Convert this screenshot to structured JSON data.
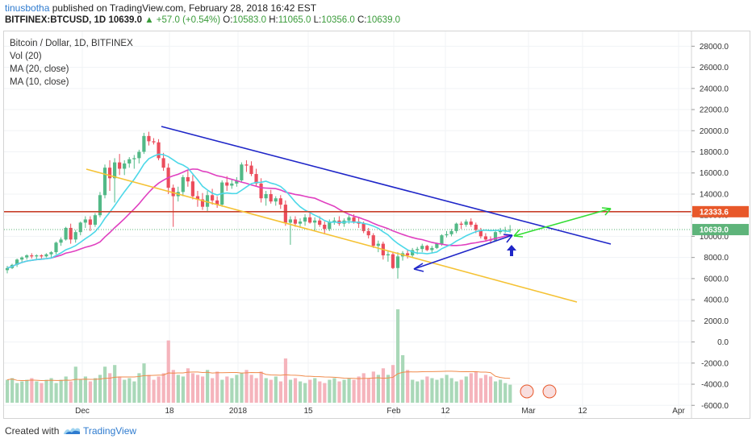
{
  "header": {
    "author": "tinusbotha",
    "published_text": "published on TradingView.com, February 28, 2018 16:42 EST",
    "symbol": "BITFINEX:BTCUSD, 1D",
    "price": "10639.0",
    "change": "▲ +57.0 (+0.54%)",
    "open_label": "O:",
    "open": "10583.0",
    "high_label": "H:",
    "high": "11065.0",
    "low_label": "L:",
    "low": "10356.0",
    "close_label": "C:",
    "close": "10639.0"
  },
  "legend": {
    "title": "Bitcoin / Dollar, 1D, BITFINEX",
    "vol": "Vol (20)",
    "ma20": "MA (20, close)",
    "ma10": "MA (10, close)"
  },
  "footer": {
    "created_with": "Created with",
    "brand": "TradingView"
  },
  "chart_data": {
    "type": "candlestick",
    "title": "Bitcoin / Dollar, 1D, BITFINEX",
    "yticks": [
      -6000,
      -4000,
      -2000,
      0,
      2000,
      4000,
      6000,
      8000,
      10000,
      12000,
      14000,
      16000,
      18000,
      20000,
      22000,
      24000,
      26000,
      28000
    ],
    "ylim": [
      -7200,
      29400
    ],
    "xticks": [
      "Dec",
      "18",
      "2018",
      "15",
      "Feb",
      "12",
      "Mar",
      "12",
      "Apr"
    ],
    "price_tags": [
      {
        "label": "12333.6",
        "value": 12333.6,
        "color": "#e8582a"
      },
      {
        "label": "10639.0",
        "value": 10639.0,
        "color": "#5eb47a"
      }
    ],
    "resistance_level": 12333.6,
    "current_price": 10639.0,
    "candles": [
      {
        "o": 6800,
        "h": 7200,
        "l": 6500,
        "c": 7000
      },
      {
        "o": 7000,
        "h": 7400,
        "l": 6900,
        "c": 7300
      },
      {
        "o": 7300,
        "h": 7900,
        "l": 7100,
        "c": 7800
      },
      {
        "o": 7800,
        "h": 8100,
        "l": 7600,
        "c": 8000
      },
      {
        "o": 8000,
        "h": 8300,
        "l": 7800,
        "c": 8200
      },
      {
        "o": 8200,
        "h": 8400,
        "l": 7900,
        "c": 8100
      },
      {
        "o": 8100,
        "h": 8300,
        "l": 7800,
        "c": 8200
      },
      {
        "o": 8200,
        "h": 8300,
        "l": 7900,
        "c": 8100
      },
      {
        "o": 8100,
        "h": 8400,
        "l": 8000,
        "c": 8300
      },
      {
        "o": 8300,
        "h": 8600,
        "l": 8000,
        "c": 8500
      },
      {
        "o": 8500,
        "h": 9500,
        "l": 8300,
        "c": 9400
      },
      {
        "o": 9400,
        "h": 9900,
        "l": 9100,
        "c": 9700
      },
      {
        "o": 9700,
        "h": 10900,
        "l": 9600,
        "c": 10800
      },
      {
        "o": 10800,
        "h": 11200,
        "l": 9300,
        "c": 9700
      },
      {
        "o": 9700,
        "h": 10600,
        "l": 9400,
        "c": 10400
      },
      {
        "o": 10400,
        "h": 11400,
        "l": 10100,
        "c": 11300
      },
      {
        "o": 11300,
        "h": 11900,
        "l": 10800,
        "c": 11600
      },
      {
        "o": 11600,
        "h": 11900,
        "l": 10500,
        "c": 11100
      },
      {
        "o": 11100,
        "h": 12200,
        "l": 10900,
        "c": 12000
      },
      {
        "o": 12000,
        "h": 14200,
        "l": 11800,
        "c": 13900
      },
      {
        "o": 13900,
        "h": 16800,
        "l": 13600,
        "c": 16500
      },
      {
        "o": 16500,
        "h": 17200,
        "l": 14300,
        "c": 15500
      },
      {
        "o": 15500,
        "h": 17400,
        "l": 13200,
        "c": 17000
      },
      {
        "o": 17000,
        "h": 17800,
        "l": 15800,
        "c": 16400
      },
      {
        "o": 16400,
        "h": 17200,
        "l": 15800,
        "c": 16900
      },
      {
        "o": 16900,
        "h": 17500,
        "l": 16500,
        "c": 17300
      },
      {
        "o": 17300,
        "h": 17700,
        "l": 16400,
        "c": 17400
      },
      {
        "o": 17400,
        "h": 18200,
        "l": 16900,
        "c": 18000
      },
      {
        "o": 18000,
        "h": 19800,
        "l": 17800,
        "c": 19500
      },
      {
        "o": 19500,
        "h": 19900,
        "l": 18600,
        "c": 19000
      },
      {
        "o": 19000,
        "h": 19300,
        "l": 18700,
        "c": 18900
      },
      {
        "o": 18900,
        "h": 19200,
        "l": 17200,
        "c": 17400
      },
      {
        "o": 17400,
        "h": 17900,
        "l": 16200,
        "c": 16500
      },
      {
        "o": 16500,
        "h": 16900,
        "l": 14000,
        "c": 14600
      },
      {
        "o": 14600,
        "h": 14900,
        "l": 10900,
        "c": 13800
      },
      {
        "o": 13800,
        "h": 14700,
        "l": 13300,
        "c": 14200
      },
      {
        "o": 14200,
        "h": 15800,
        "l": 13800,
        "c": 15600
      },
      {
        "o": 15600,
        "h": 16200,
        "l": 14700,
        "c": 15200
      },
      {
        "o": 15200,
        "h": 15800,
        "l": 13500,
        "c": 13800
      },
      {
        "o": 13800,
        "h": 14300,
        "l": 12800,
        "c": 13500
      },
      {
        "o": 13500,
        "h": 14100,
        "l": 12500,
        "c": 12800
      },
      {
        "o": 12800,
        "h": 14300,
        "l": 12400,
        "c": 13900
      },
      {
        "o": 13900,
        "h": 14500,
        "l": 13000,
        "c": 13400
      },
      {
        "o": 13400,
        "h": 13800,
        "l": 12700,
        "c": 13000
      },
      {
        "o": 13000,
        "h": 15300,
        "l": 12800,
        "c": 15100
      },
      {
        "o": 15100,
        "h": 15700,
        "l": 14300,
        "c": 14800
      },
      {
        "o": 14800,
        "h": 15400,
        "l": 14500,
        "c": 15000
      },
      {
        "o": 15000,
        "h": 15600,
        "l": 14700,
        "c": 15300
      },
      {
        "o": 15300,
        "h": 17000,
        "l": 15100,
        "c": 16800
      },
      {
        "o": 16800,
        "h": 17200,
        "l": 16100,
        "c": 16700
      },
      {
        "o": 16700,
        "h": 17100,
        "l": 15700,
        "c": 15900
      },
      {
        "o": 15900,
        "h": 16400,
        "l": 14800,
        "c": 15000
      },
      {
        "o": 15000,
        "h": 15500,
        "l": 13200,
        "c": 13600
      },
      {
        "o": 13600,
        "h": 14300,
        "l": 12900,
        "c": 14000
      },
      {
        "o": 14000,
        "h": 14400,
        "l": 13100,
        "c": 13300
      },
      {
        "o": 13300,
        "h": 13800,
        "l": 12900,
        "c": 13600
      },
      {
        "o": 13600,
        "h": 13900,
        "l": 12600,
        "c": 13000
      },
      {
        "o": 13000,
        "h": 13400,
        "l": 11000,
        "c": 11300
      },
      {
        "o": 11300,
        "h": 11900,
        "l": 9200,
        "c": 11600
      },
      {
        "o": 11600,
        "h": 11900,
        "l": 10900,
        "c": 11200
      },
      {
        "o": 11200,
        "h": 11700,
        "l": 10800,
        "c": 11400
      },
      {
        "o": 11400,
        "h": 12100,
        "l": 11000,
        "c": 11800
      },
      {
        "o": 11800,
        "h": 12200,
        "l": 11200,
        "c": 11300
      },
      {
        "o": 11300,
        "h": 11800,
        "l": 10500,
        "c": 11500
      },
      {
        "o": 11500,
        "h": 11900,
        "l": 10900,
        "c": 11100
      },
      {
        "o": 11100,
        "h": 11400,
        "l": 10200,
        "c": 10700
      },
      {
        "o": 10700,
        "h": 11600,
        "l": 10500,
        "c": 11400
      },
      {
        "o": 11400,
        "h": 11800,
        "l": 11100,
        "c": 11500
      },
      {
        "o": 11500,
        "h": 11900,
        "l": 11000,
        "c": 11200
      },
      {
        "o": 11200,
        "h": 11700,
        "l": 10900,
        "c": 11500
      },
      {
        "o": 11500,
        "h": 12000,
        "l": 11200,
        "c": 11800
      },
      {
        "o": 11800,
        "h": 12100,
        "l": 11200,
        "c": 11400
      },
      {
        "o": 11400,
        "h": 11800,
        "l": 10800,
        "c": 11200
      },
      {
        "o": 11200,
        "h": 11400,
        "l": 10300,
        "c": 10500
      },
      {
        "o": 10500,
        "h": 10800,
        "l": 9800,
        "c": 10100
      },
      {
        "o": 10100,
        "h": 10300,
        "l": 8900,
        "c": 9100
      },
      {
        "o": 9100,
        "h": 9600,
        "l": 8500,
        "c": 9300
      },
      {
        "o": 9300,
        "h": 9500,
        "l": 7800,
        "c": 8200
      },
      {
        "o": 8200,
        "h": 8600,
        "l": 7600,
        "c": 8300
      },
      {
        "o": 8300,
        "h": 8500,
        "l": 6900,
        "c": 7000
      },
      {
        "o": 7000,
        "h": 8500,
        "l": 6000,
        "c": 8100
      },
      {
        "o": 8100,
        "h": 8600,
        "l": 7700,
        "c": 8400
      },
      {
        "o": 8400,
        "h": 8700,
        "l": 7900,
        "c": 8200
      },
      {
        "o": 8200,
        "h": 8900,
        "l": 8000,
        "c": 8700
      },
      {
        "o": 8700,
        "h": 9000,
        "l": 8300,
        "c": 8800
      },
      {
        "o": 8800,
        "h": 9300,
        "l": 8500,
        "c": 9100
      },
      {
        "o": 9100,
        "h": 9200,
        "l": 8600,
        "c": 8700
      },
      {
        "o": 8700,
        "h": 9100,
        "l": 8400,
        "c": 8900
      },
      {
        "o": 8900,
        "h": 9400,
        "l": 8800,
        "c": 9300
      },
      {
        "o": 9300,
        "h": 10200,
        "l": 9100,
        "c": 10100
      },
      {
        "o": 10100,
        "h": 10500,
        "l": 9900,
        "c": 10200
      },
      {
        "o": 10200,
        "h": 10700,
        "l": 10000,
        "c": 10500
      },
      {
        "o": 10500,
        "h": 11300,
        "l": 10300,
        "c": 11200
      },
      {
        "o": 11200,
        "h": 11400,
        "l": 10700,
        "c": 11100
      },
      {
        "o": 11100,
        "h": 11600,
        "l": 10900,
        "c": 11400
      },
      {
        "o": 11400,
        "h": 11700,
        "l": 10900,
        "c": 11100
      },
      {
        "o": 11100,
        "h": 11300,
        "l": 10300,
        "c": 10600
      },
      {
        "o": 10600,
        "h": 10800,
        "l": 9800,
        "c": 10000
      },
      {
        "o": 10000,
        "h": 10300,
        "l": 9500,
        "c": 9700
      },
      {
        "o": 9700,
        "h": 10000,
        "l": 9300,
        "c": 9600
      },
      {
        "o": 9600,
        "h": 10500,
        "l": 9500,
        "c": 10400
      },
      {
        "o": 10400,
        "h": 10800,
        "l": 10200,
        "c": 10500
      },
      {
        "o": 10500,
        "h": 10900,
        "l": 10300,
        "c": 10600
      },
      {
        "o": 10583,
        "h": 11065,
        "l": 10356,
        "c": 10639
      }
    ],
    "volume": [
      14,
      15,
      12,
      13,
      14,
      15,
      13,
      12,
      14,
      15,
      12,
      14,
      16,
      13,
      22,
      14,
      16,
      13,
      15,
      17,
      22,
      18,
      23,
      16,
      14,
      15,
      13,
      18,
      24,
      17,
      14,
      16,
      18,
      38,
      20,
      17,
      16,
      21,
      18,
      17,
      16,
      20,
      15,
      19,
      14,
      16,
      15,
      17,
      18,
      20,
      17,
      15,
      19,
      15,
      14,
      16,
      13,
      27,
      14,
      15,
      13,
      12,
      14,
      15,
      13,
      12,
      14,
      15,
      13,
      14,
      15,
      14,
      16,
      18,
      15,
      19,
      17,
      21,
      17,
      23,
      57,
      29,
      20,
      14,
      13,
      14,
      16,
      15,
      14,
      15,
      17,
      15,
      13,
      14,
      16,
      18,
      19,
      15,
      17,
      16,
      13,
      14,
      12,
      11
    ]
  }
}
